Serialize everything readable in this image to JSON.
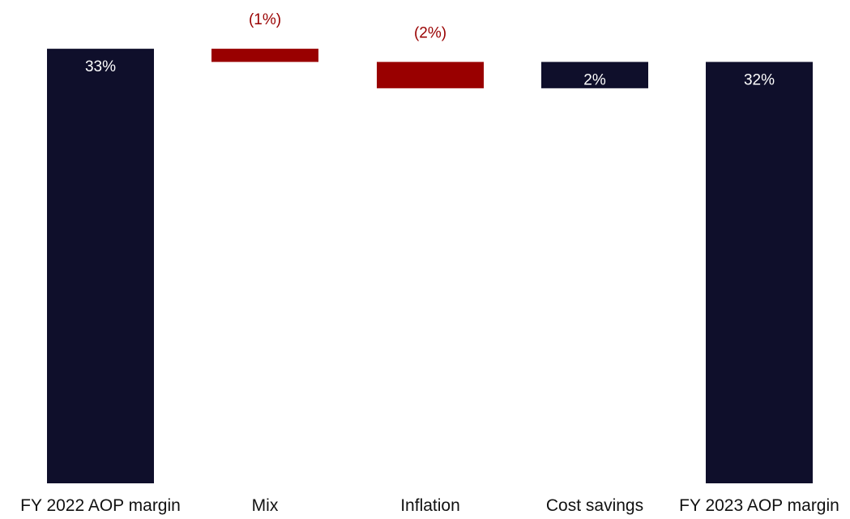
{
  "chart_data": {
    "type": "bar",
    "subtype": "waterfall",
    "title": "",
    "xlabel": "",
    "ylabel": "",
    "categories": [
      "FY 2022 AOP margin",
      "Mix",
      "Inflation",
      "Cost savings",
      "FY 2023 AOP margin"
    ],
    "values": [
      33,
      -1,
      -2,
      2,
      32
    ],
    "measures": [
      "absolute",
      "relative",
      "relative",
      "relative",
      "total"
    ],
    "data_labels": [
      "33%",
      "(1%)",
      "(2%)",
      "2%",
      "32%"
    ],
    "value_unit": "%",
    "ylim": [
      0,
      33.5
    ],
    "grid": false,
    "legend": "none",
    "colors": {
      "total": "#0f0f2b",
      "increase": "#0f0f2b",
      "decrease": "#990000",
      "label_on_bar": "#ffffff",
      "label_decrease": "#990000",
      "axis_label": "#111111"
    }
  }
}
